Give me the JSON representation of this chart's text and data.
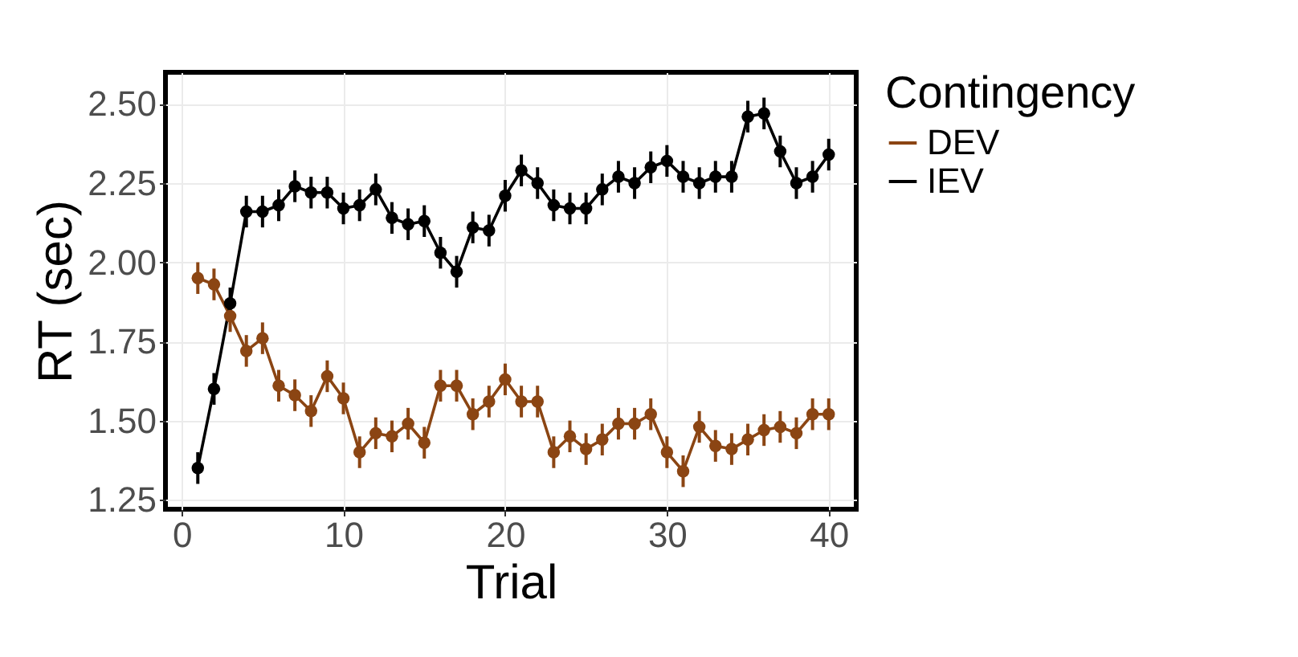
{
  "chart_data": {
    "type": "line",
    "xlabel": "Trial",
    "ylabel": "RT (sec)",
    "legend_title": "Contingency",
    "x": [
      1,
      2,
      3,
      4,
      5,
      6,
      7,
      8,
      9,
      10,
      11,
      12,
      13,
      14,
      15,
      16,
      17,
      18,
      19,
      20,
      21,
      22,
      23,
      24,
      25,
      26,
      27,
      28,
      29,
      30,
      31,
      32,
      33,
      34,
      35,
      36,
      37,
      38,
      39,
      40
    ],
    "series": [
      {
        "name": "DEV",
        "color": "#8b4513",
        "values": [
          1.95,
          1.93,
          1.83,
          1.72,
          1.76,
          1.61,
          1.58,
          1.53,
          1.64,
          1.57,
          1.4,
          1.46,
          1.45,
          1.49,
          1.43,
          1.61,
          1.61,
          1.52,
          1.56,
          1.63,
          1.56,
          1.56,
          1.4,
          1.45,
          1.41,
          1.44,
          1.49,
          1.49,
          1.52,
          1.4,
          1.34,
          1.48,
          1.42,
          1.41,
          1.44,
          1.47,
          1.48,
          1.46,
          1.52,
          1.52
        ],
        "errors": [
          0.05,
          0.05,
          0.05,
          0.05,
          0.05,
          0.05,
          0.05,
          0.05,
          0.05,
          0.05,
          0.05,
          0.05,
          0.05,
          0.05,
          0.05,
          0.05,
          0.05,
          0.05,
          0.05,
          0.05,
          0.05,
          0.05,
          0.05,
          0.05,
          0.05,
          0.05,
          0.05,
          0.05,
          0.05,
          0.05,
          0.05,
          0.05,
          0.05,
          0.05,
          0.05,
          0.05,
          0.05,
          0.05,
          0.05,
          0.05
        ]
      },
      {
        "name": "IEV",
        "color": "#000000",
        "values": [
          1.35,
          1.6,
          1.87,
          2.16,
          2.16,
          2.18,
          2.24,
          2.22,
          2.22,
          2.17,
          2.18,
          2.23,
          2.14,
          2.12,
          2.13,
          2.03,
          1.97,
          2.11,
          2.1,
          2.21,
          2.29,
          2.25,
          2.18,
          2.17,
          2.17,
          2.23,
          2.27,
          2.25,
          2.3,
          2.32,
          2.27,
          2.25,
          2.27,
          2.27,
          2.46,
          2.47,
          2.35,
          2.25,
          2.27,
          2.34
        ],
        "errors": [
          0.05,
          0.05,
          0.05,
          0.05,
          0.05,
          0.05,
          0.05,
          0.05,
          0.05,
          0.05,
          0.05,
          0.05,
          0.05,
          0.05,
          0.05,
          0.05,
          0.05,
          0.05,
          0.05,
          0.05,
          0.05,
          0.05,
          0.05,
          0.05,
          0.05,
          0.05,
          0.05,
          0.05,
          0.05,
          0.05,
          0.05,
          0.05,
          0.05,
          0.05,
          0.05,
          0.05,
          0.05,
          0.05,
          0.05,
          0.05
        ]
      }
    ],
    "xlim": [
      -1,
      41.7
    ],
    "xticks": [
      0,
      10,
      20,
      30,
      40
    ],
    "ylim": [
      1.22,
      2.6
    ],
    "yticks": [
      {
        "value": 1.25,
        "label": "1.25"
      },
      {
        "value": 1.5,
        "label": "1.50"
      },
      {
        "value": 1.75,
        "label": "1.75"
      },
      {
        "value": 2.0,
        "label": "2.00"
      },
      {
        "value": 2.25,
        "label": "2.25"
      },
      {
        "value": 2.5,
        "label": "2.50"
      }
    ],
    "grid": true,
    "legend": "right",
    "marker": "circle",
    "line_style": "solid"
  }
}
